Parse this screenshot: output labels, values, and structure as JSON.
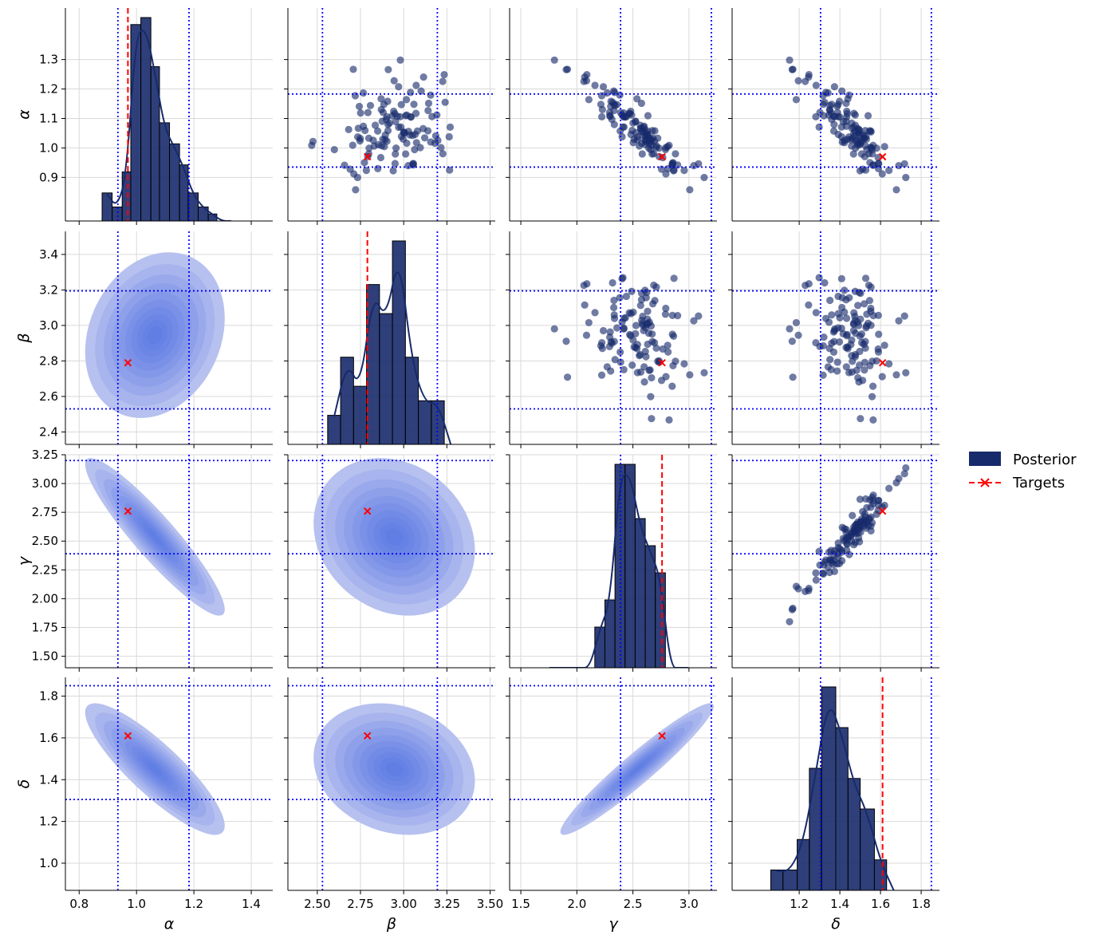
{
  "chart_data": {
    "type": "pairplot",
    "variables": [
      {
        "label": "α",
        "ticks": [
          0.9,
          1.0,
          1.1,
          1.2,
          1.3
        ],
        "xticks": [
          "0.8",
          "1.0",
          "1.2",
          "1.4"
        ],
        "xtick_values": [
          0.8,
          1.0,
          1.2,
          1.4
        ],
        "yticks": [
          "0.9",
          "1.0",
          "1.1",
          "1.2",
          "1.3"
        ],
        "ytick_values": [
          0.9,
          1.0,
          1.1,
          1.2,
          1.3
        ],
        "lim": [
          0.752,
          1.475
        ],
        "target": 0.97,
        "bounds": [
          0.935,
          1.183
        ]
      },
      {
        "label": "β",
        "xticks": [
          "2.50",
          "2.75",
          "3.00",
          "3.25",
          "3.50"
        ],
        "xtick_values": [
          2.5,
          2.75,
          3.0,
          3.25,
          3.5
        ],
        "yticks": [
          "2.4",
          "2.6",
          "2.8",
          "3.0",
          "3.2",
          "3.4"
        ],
        "ytick_values": [
          2.4,
          2.6,
          2.8,
          3.0,
          3.2,
          3.4
        ],
        "lim": [
          2.33,
          3.53
        ],
        "target": 2.79,
        "bounds": [
          2.53,
          3.195
        ]
      },
      {
        "label": "γ",
        "xticks": [
          "1.5",
          "2.0",
          "2.5",
          "3.0"
        ],
        "xtick_values": [
          1.5,
          2.0,
          2.5,
          3.0
        ],
        "yticks": [
          "1.50",
          "1.75",
          "2.00",
          "2.25",
          "2.50",
          "2.75",
          "3.00",
          "3.25"
        ],
        "ytick_values": [
          1.5,
          1.75,
          2.0,
          2.25,
          2.5,
          2.75,
          3.0,
          3.25
        ],
        "lim": [
          1.4,
          3.25
        ],
        "target": 2.76,
        "bounds": [
          2.39,
          3.2
        ]
      },
      {
        "label": "δ",
        "xticks": [
          "1.2",
          "1.4",
          "1.6",
          "1.8"
        ],
        "xtick_values": [
          1.2,
          1.4,
          1.6,
          1.8
        ],
        "yticks": [
          "1.0",
          "1.2",
          "1.4",
          "1.6",
          "1.8"
        ],
        "ytick_values": [
          1.0,
          1.2,
          1.4,
          1.6,
          1.8
        ],
        "lim": [
          0.87,
          1.89
        ],
        "target": 1.61,
        "bounds": [
          1.305,
          1.85
        ]
      }
    ],
    "histograms": [
      {
        "variable": "α",
        "edges": [
          0.88,
          0.915,
          0.95,
          0.98,
          1.015,
          1.05,
          1.08,
          1.115,
          1.15,
          1.18,
          1.215,
          1.25,
          1.28,
          1.315,
          1.345
        ],
        "counts": [
          4,
          2,
          7,
          28,
          29,
          22,
          14,
          11,
          8,
          4,
          2,
          1,
          0,
          0
        ]
      },
      {
        "variable": "β",
        "edges": [
          2.56,
          2.635,
          2.71,
          2.785,
          2.86,
          2.935,
          3.01,
          3.085,
          3.16,
          3.235,
          3.31
        ],
        "counts": [
          2,
          6,
          4,
          11,
          9,
          14,
          6,
          3,
          3,
          0
        ]
      },
      {
        "variable": "γ",
        "edges": [
          1.71,
          1.8,
          1.89,
          1.98,
          2.07,
          2.16,
          2.25,
          2.34,
          2.43,
          2.52,
          2.61,
          2.7,
          2.79,
          2.88,
          2.97,
          3.02
        ],
        "counts": [
          0,
          0,
          0,
          0,
          0,
          3,
          5,
          15,
          15,
          11,
          9,
          7,
          0,
          0,
          0
        ]
      },
      {
        "variable": "δ",
        "edges": [
          1.06,
          1.12,
          1.19,
          1.25,
          1.31,
          1.38,
          1.44,
          1.5,
          1.57,
          1.63,
          1.7
        ],
        "counts": [
          2,
          2,
          5,
          12,
          20,
          16,
          11,
          8,
          3,
          0
        ]
      }
    ],
    "legend": {
      "placement": "right",
      "entries": [
        {
          "label": "Posterior",
          "color": "#172a6b"
        },
        {
          "label": "Targets",
          "color": "#ff0000"
        }
      ]
    },
    "colors": {
      "posterior": "#172a6b",
      "target": "#ff0000",
      "bounds": "#0000ff",
      "kde": "#4a6be0"
    },
    "grid": true
  }
}
